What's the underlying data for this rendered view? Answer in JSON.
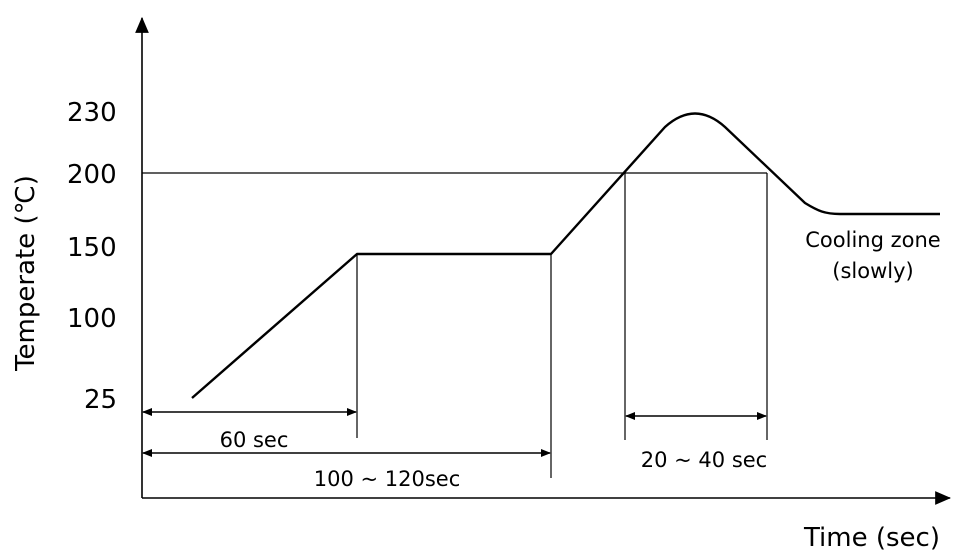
{
  "diagram": {
    "y_axis": {
      "title": "Temperate (℃)",
      "ticks": [
        {
          "key": "t230",
          "label": "230"
        },
        {
          "key": "t200",
          "label": "200"
        },
        {
          "key": "t150",
          "label": "150"
        },
        {
          "key": "t100",
          "label": "100"
        },
        {
          "key": "t25",
          "label": "25"
        }
      ]
    },
    "x_axis": {
      "title": "Time (sec)"
    },
    "annotations": {
      "preheat_ramp": "60 sec",
      "soak_total": "100 ~ 120sec",
      "peak_window": "20 ~ 40 sec",
      "cooling_line1": "Cooling zone",
      "cooling_line2": "(slowly)"
    }
  }
}
